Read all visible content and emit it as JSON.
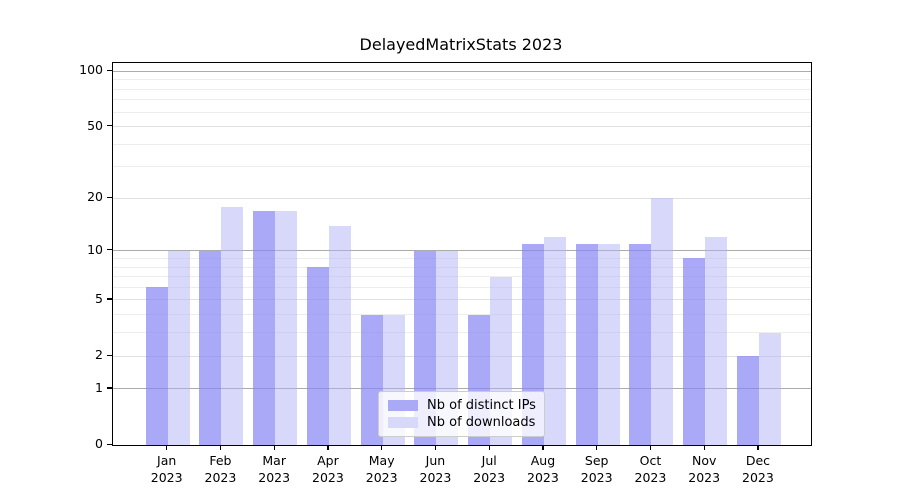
{
  "title": "DelayedMatrixStats 2023",
  "legend": {
    "items": [
      {
        "label": "Nb of distinct IPs",
        "color": "#a9a9f5"
      },
      {
        "label": "Nb of downloads",
        "color": "#d8d8fa"
      }
    ]
  },
  "colors": {
    "bar_distinct_ips": "rgba(133,133,243,0.7)",
    "bar_downloads": "rgba(178,178,245,0.5)",
    "grid_major": "#ababab",
    "grid_labeled": "#e0e0e0",
    "grid_minor": "#ededed",
    "axis": "#000000"
  },
  "chart_data": {
    "type": "bar",
    "title": "DelayedMatrixStats 2023",
    "categories": [
      "Jan 2023",
      "Feb 2023",
      "Mar 2023",
      "Apr 2023",
      "May 2023",
      "Jun 2023",
      "Jul 2023",
      "Aug 2023",
      "Sep 2023",
      "Oct 2023",
      "Nov 2023",
      "Dec 2023"
    ],
    "series": [
      {
        "name": "Nb of distinct IPs",
        "values": [
          6,
          10,
          17,
          8,
          4,
          10,
          4,
          11,
          11,
          11,
          9,
          2
        ]
      },
      {
        "name": "Nb of downloads",
        "values": [
          10,
          18,
          17,
          14,
          4,
          10,
          7,
          12,
          11,
          20,
          12,
          3
        ]
      }
    ],
    "xlabel": "",
    "ylabel": "",
    "yscale": "log1p",
    "ylim": [
      0,
      110
    ],
    "yticks": [
      0,
      1,
      2,
      5,
      10,
      20,
      50,
      100
    ],
    "major_gridlines": [
      1,
      10,
      100
    ],
    "labeled_nonmajor_gridlines": [
      2,
      5,
      20,
      50
    ],
    "minor_gridlines": [
      3,
      4,
      6,
      7,
      8,
      9,
      30,
      40,
      60,
      70,
      80,
      90
    ],
    "grid": true,
    "legend_position": "lower center"
  }
}
